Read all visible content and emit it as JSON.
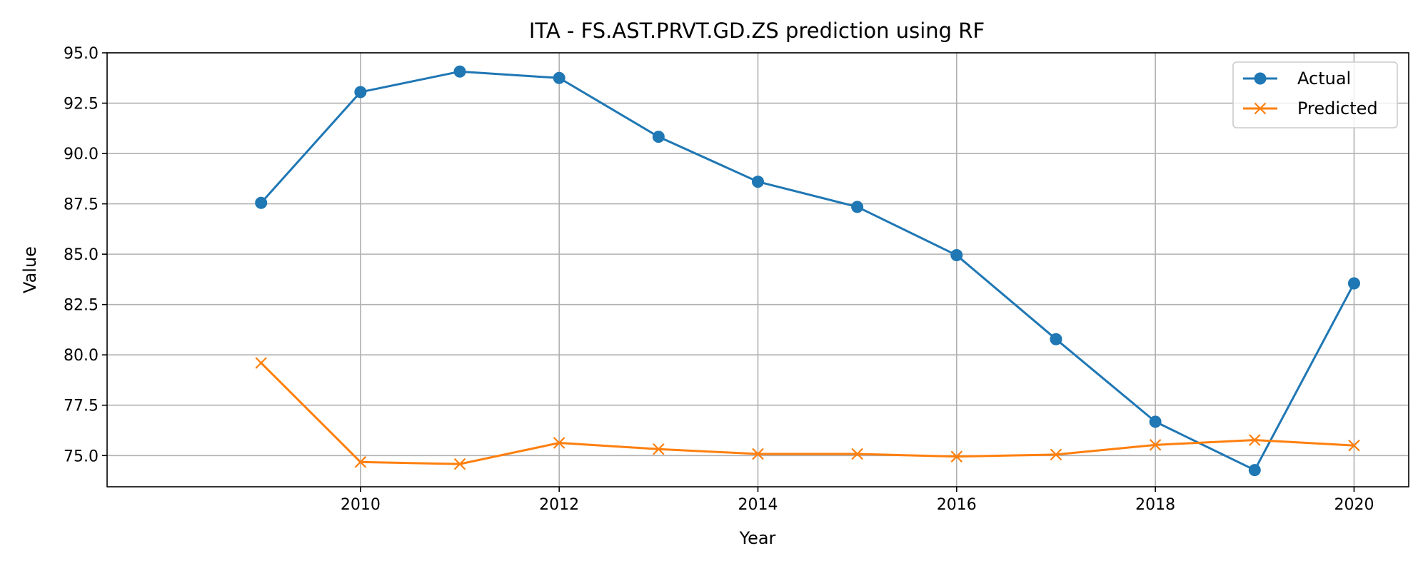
{
  "chart_data": {
    "type": "line",
    "title": "ITA - FS.AST.PRVT.GD.ZS prediction using RF",
    "xlabel": "Year",
    "ylabel": "Value",
    "x": [
      2009,
      2010,
      2011,
      2012,
      2013,
      2014,
      2015,
      2016,
      2017,
      2018,
      2019,
      2020
    ],
    "xlim": [
      2007.45,
      2020.55
    ],
    "ylim": [
      73.45,
      95.0
    ],
    "xticks": [
      2010,
      2012,
      2014,
      2016,
      2018,
      2020
    ],
    "xtick_labels": [
      "2010",
      "2012",
      "2014",
      "2016",
      "2018",
      "2020"
    ],
    "yticks": [
      75.0,
      77.5,
      80.0,
      82.5,
      85.0,
      87.5,
      90.0,
      92.5,
      95.0
    ],
    "ytick_labels": [
      "75.0",
      "77.5",
      "80.0",
      "82.5",
      "85.0",
      "87.5",
      "90.0",
      "92.5",
      "95.0"
    ],
    "grid": true,
    "legend_position": "top-right",
    "series": [
      {
        "name": "Actual",
        "color": "#1f77b4",
        "marker": "circle",
        "values": [
          87.55,
          93.05,
          94.07,
          93.75,
          90.83,
          88.6,
          87.35,
          84.95,
          80.78,
          76.68,
          74.28,
          83.55
        ]
      },
      {
        "name": "Predicted",
        "color": "#ff7f0e",
        "marker": "x",
        "values": [
          79.6,
          74.68,
          74.58,
          75.63,
          75.32,
          75.08,
          75.08,
          74.95,
          75.05,
          75.53,
          75.77,
          75.5
        ]
      }
    ]
  }
}
